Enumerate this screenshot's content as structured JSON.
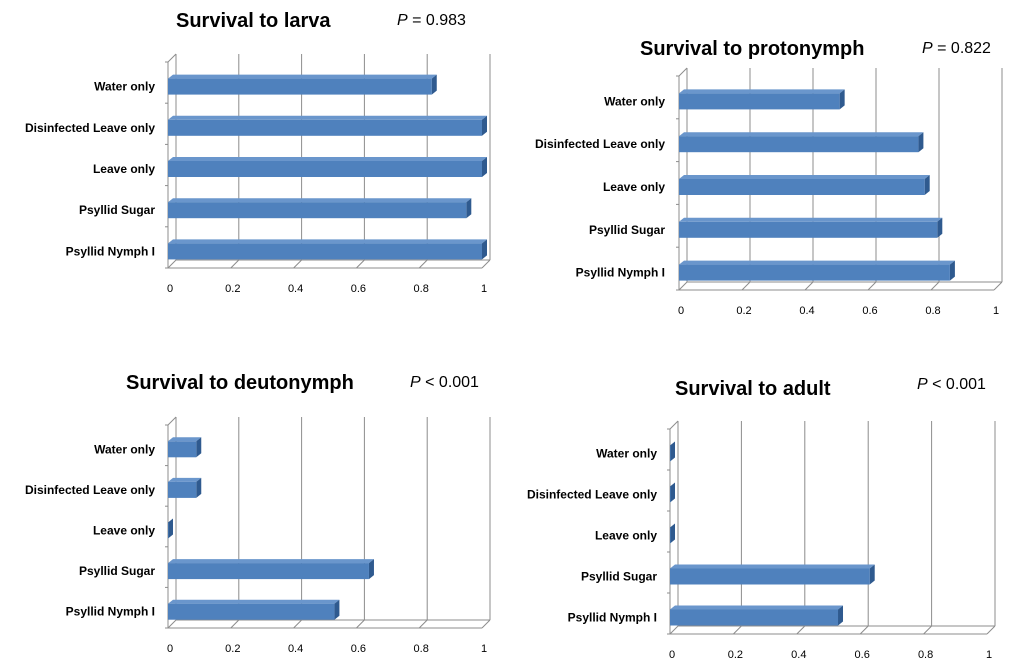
{
  "chart_data": [
    {
      "type": "bar",
      "orientation": "horizontal",
      "title": "Survival to larva",
      "p_label": "P",
      "p_value": "= 0.983",
      "categories": [
        "Psyllid Nymph I",
        "Psyllid Sugar",
        "Leave only",
        "Disinfected Leave only",
        "Water only"
      ],
      "values": [
        1.0,
        0.95,
        1.0,
        1.0,
        0.84
      ],
      "xlim": [
        0,
        1
      ],
      "xticks": [
        "0",
        "0.2",
        "0.4",
        "0.6",
        "0.8",
        "1"
      ],
      "grid": true,
      "bar_color": "#4f81bd"
    },
    {
      "type": "bar",
      "orientation": "horizontal",
      "title": "Survival to protonymph",
      "p_label": "P",
      "p_value": "= 0.822",
      "categories": [
        "Psyllid Nymph I",
        "Psyllid Sugar",
        "Leave only",
        "Disinfected Leave only",
        "Water only"
      ],
      "values": [
        0.86,
        0.82,
        0.78,
        0.76,
        0.51
      ],
      "xlim": [
        0,
        1
      ],
      "xticks": [
        "0",
        "0.2",
        "0.4",
        "0.6",
        "0.8",
        "1"
      ],
      "grid": true,
      "bar_color": "#4f81bd"
    },
    {
      "type": "bar",
      "orientation": "horizontal",
      "title": "Survival to deutonymph",
      "p_label": "P",
      "p_value": "< 0.001",
      "categories": [
        "Psyllid Nymph I",
        "Psyllid Sugar",
        "Leave only",
        "Disinfected Leave only",
        "Water only"
      ],
      "values": [
        0.53,
        0.64,
        0.0,
        0.09,
        0.09
      ],
      "xlim": [
        0,
        1
      ],
      "xticks": [
        "0",
        "0.2",
        "0.4",
        "0.6",
        "0.8",
        "1"
      ],
      "grid": true,
      "bar_color": "#4f81bd"
    },
    {
      "type": "bar",
      "orientation": "horizontal",
      "title": "Survival to adult",
      "p_label": "P",
      "p_value": "< 0.001",
      "categories": [
        "Psyllid Nymph I",
        "Psyllid Sugar",
        "Leave only",
        "Disinfected Leave only",
        "Water only"
      ],
      "values": [
        0.53,
        0.63,
        0.0,
        0.0,
        0.0
      ],
      "xlim": [
        0,
        1
      ],
      "xticks": [
        "0",
        "0.2",
        "0.4",
        "0.6",
        "0.8",
        "1"
      ],
      "grid": true,
      "bar_color": "#4f81bd"
    }
  ]
}
